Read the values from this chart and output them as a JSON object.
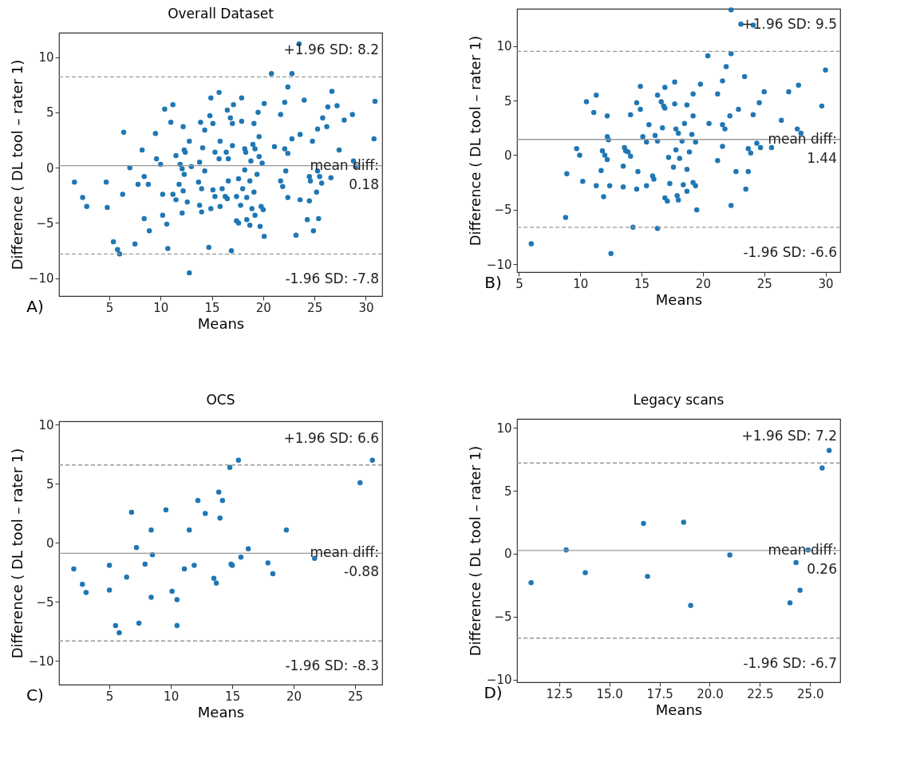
{
  "chart_data": [
    {
      "type": "scatter",
      "title": "Overall Dataset",
      "xlabel": "Means",
      "ylabel": "Difference ( DL tool – rater 1)",
      "annotations": [
        "A)"
      ],
      "color": "#1f77b4",
      "marker": "circle",
      "x": [
        1.6,
        2.4,
        2.8,
        4.7,
        4.8,
        5.4,
        5.8,
        6.0,
        6.3,
        6.4,
        7.0,
        7.5,
        7.8,
        8.2,
        8.4,
        8.4,
        8.8,
        8.9,
        9.5,
        9.6,
        10.0,
        10.2,
        10.2,
        10.4,
        10.6,
        10.7,
        11.0,
        11.2,
        11.2,
        11.5,
        11.5,
        11.8,
        11.9,
        12.1,
        12.2,
        12.2,
        12.1,
        12.3,
        12.3,
        12.4,
        12.6,
        12.8,
        12.8,
        13.0,
        13.7,
        13.8,
        13.9,
        13.8,
        14.0,
        14.0,
        14.1,
        14.3,
        14.3,
        14.8,
        14.7,
        14.9,
        14.9,
        15.1,
        15.1,
        15.3,
        15.3,
        15.7,
        15.7,
        15.8,
        15.8,
        16.0,
        16.3,
        16.4,
        16.5,
        16.5,
        16.6,
        16.6,
        16.8,
        16.9,
        17.0,
        17.0,
        17.1,
        17.4,
        17.4,
        17.6,
        17.6,
        17.8,
        17.9,
        17.9,
        18.0,
        18.2,
        18.2,
        18.3,
        18.4,
        18.4,
        18.7,
        18.7,
        18.8,
        19.0,
        19.1,
        19.1,
        18.9,
        19.2,
        19.2,
        19.4,
        19.5,
        19.6,
        19.6,
        19.7,
        19.8,
        19.9,
        20.0,
        20.1,
        20.1,
        20.8,
        21.1,
        21.7,
        21.7,
        21.9,
        22.1,
        22.1,
        22.2,
        22.4,
        22.4,
        22.4,
        22.8,
        22.8,
        23.2,
        23.5,
        23.6,
        23.6,
        24.0,
        24.3,
        24.5,
        24.6,
        24.5,
        24.8,
        24.9,
        25.2,
        25.3,
        25.3,
        25.4,
        25.5,
        25.7,
        25.8,
        26.2,
        26.3,
        26.6,
        26.7,
        27.2,
        27.4,
        27.9,
        28.7,
        28.8,
        29.0,
        30.8,
        30.9
      ],
      "values": [
        -1.3,
        -2.7,
        -3.5,
        -1.3,
        -3.6,
        -6.7,
        -7.4,
        -7.8,
        -2.4,
        3.2,
        0.0,
        -6.9,
        -1.5,
        1.6,
        -0.8,
        -4.6,
        -1.5,
        -5.7,
        3.1,
        0.8,
        0.3,
        -2.4,
        -4.3,
        5.3,
        -5.1,
        -7.3,
        4.1,
        5.7,
        -2.4,
        1.1,
        -2.9,
        -1.5,
        0.3,
        -0.1,
        3.7,
        -2.1,
        -4.1,
        1.6,
        -0.6,
        1.4,
        -3.1,
        -9.5,
        2.4,
        0.1,
        -1.3,
        -3.4,
        4.1,
        0.5,
        -1.9,
        -4.0,
        1.8,
        3.4,
        -0.3,
        4.7,
        -7.2,
        6.3,
        -3.7,
        4.0,
        -2.0,
        -2.6,
        1.4,
        6.8,
        0.8,
        2.4,
        -3.5,
        -1.9,
        -2.6,
        1.4,
        5.2,
        -2.8,
        0.8,
        -1.2,
        4.5,
        -7.5,
        4.0,
        2.0,
        5.7,
        -2.6,
        -4.8,
        -1.0,
        -5.0,
        -3.4,
        6.3,
        4.2,
        -1.9,
        1.7,
        -0.2,
        1.4,
        -2.7,
        -4.7,
        -1.2,
        -5.2,
        0.6,
        2.1,
        4.0,
        -2.2,
        -3.7,
        1.7,
        -4.3,
        -0.6,
        5.0,
        1.0,
        2.8,
        -5.3,
        -3.5,
        0.4,
        -3.8,
        5.8,
        -6.2,
        8.5,
        1.9,
        4.8,
        -1.2,
        -1.7,
        5.9,
        1.7,
        -0.3,
        1.3,
        7.3,
        -2.7,
        8.5,
        2.6,
        -6.1,
        11.2,
        3.0,
        -2.9,
        6.1,
        -4.7,
        -0.8,
        -1.2,
        -3.0,
        2.4,
        -5.7,
        -2.2,
        -0.3,
        3.5,
        -4.6,
        -0.8,
        -1.4,
        4.5,
        3.7,
        5.5,
        -0.9,
        6.9,
        5.6,
        1.6,
        4.3,
        4.8,
        0.6,
        0.1,
        2.6,
        6.0
      ],
      "xlim": [
        0.1,
        31.6
      ],
      "ylim": [
        -11.6,
        12.2
      ],
      "xticks": [
        5,
        10,
        15,
        20,
        25,
        30
      ],
      "yticks": [
        -10,
        -5,
        0,
        5,
        10
      ],
      "ref_lines": [
        {
          "axis": "y",
          "value": 8.2,
          "label": "+1.96 SD: 8.2",
          "color": "#999999",
          "line_style": "dashed"
        },
        {
          "axis": "y",
          "value": 0.18,
          "label": "mean diff:\n0.18",
          "color": "#999999",
          "line_style": "solid"
        },
        {
          "axis": "y",
          "value": -7.8,
          "label": "-1.96 SD: -7.8",
          "color": "#999999",
          "line_style": "dashed"
        }
      ]
    },
    {
      "type": "scatter",
      "xlabel": "Means",
      "ylabel": "Difference ( DL tool – rater 1)",
      "annotations": [
        "B)"
      ],
      "color": "#1f77b4",
      "marker": "circle",
      "x": [
        6.0,
        8.8,
        8.9,
        9.7,
        9.95,
        10.2,
        10.5,
        11.1,
        11.3,
        11.3,
        11.7,
        11.8,
        11.9,
        12.0,
        12.2,
        12.2,
        12.2,
        12.3,
        12.4,
        12.5,
        13.5,
        13.5,
        13.6,
        13.7,
        13.9,
        14.1,
        14.1,
        14.3,
        14.6,
        14.6,
        14.7,
        14.9,
        14.9,
        15.1,
        15.4,
        15.4,
        15.6,
        15.9,
        16.0,
        16.1,
        16.3,
        16.3,
        16.3,
        16.6,
        16.7,
        16.8,
        16.9,
        16.9,
        16.9,
        17.1,
        17.2,
        17.3,
        17.6,
        17.7,
        17.7,
        17.8,
        17.8,
        17.9,
        18.0,
        18.0,
        18.1,
        18.3,
        18.4,
        18.5,
        18.7,
        18.7,
        18.7,
        18.9,
        19.1,
        19.2,
        19.2,
        19.2,
        19.4,
        19.4,
        19.5,
        19.8,
        20.4,
        20.5,
        21.2,
        21.2,
        21.6,
        21.6,
        21.6,
        21.8,
        21.9,
        22.2,
        22.3,
        22.3,
        22.3,
        22.7,
        22.9,
        23.1,
        23.4,
        23.5,
        23.7,
        23.7,
        23.9,
        24.1,
        24.1,
        24.4,
        24.6,
        24.7,
        25.0,
        25.6,
        26.4,
        27.0,
        27.7,
        27.8,
        28.0,
        29.7,
        30.0
      ],
      "values": [
        -8.1,
        -5.7,
        -1.7,
        0.6,
        0.0,
        -2.4,
        4.9,
        3.9,
        5.5,
        -2.8,
        -1.4,
        0.4,
        -3.8,
        0.0,
        -0.4,
        3.6,
        1.7,
        1.4,
        -2.8,
        -9.0,
        -1.0,
        -2.9,
        0.7,
        0.4,
        0.3,
        -0.1,
        3.7,
        -6.6,
        4.8,
        -3.1,
        -1.5,
        6.3,
        4.2,
        1.7,
        -2.8,
        1.2,
        2.8,
        -1.9,
        -2.2,
        1.8,
        5.5,
        -6.7,
        1.3,
        4.9,
        2.5,
        4.5,
        4.3,
        6.2,
        -3.9,
        -4.2,
        -0.2,
        -2.6,
        -1.1,
        6.7,
        4.7,
        0.5,
        2.4,
        -3.7,
        2.0,
        -4.1,
        -0.3,
        1.3,
        -2.7,
        2.9,
        -1.3,
        -3.3,
        4.6,
        0.3,
        1.9,
        -2.5,
        3.6,
        5.6,
        -2.8,
        1.2,
        -5.0,
        6.5,
        9.1,
        2.9,
        5.6,
        -0.5,
        6.8,
        0.8,
        2.8,
        2.4,
        8.1,
        3.6,
        -4.6,
        9.3,
        13.3,
        -1.5,
        4.2,
        12.0,
        7.2,
        -3.1,
        0.6,
        -1.5,
        0.2,
        11.9,
        3.7,
        1.1,
        4.8,
        0.7,
        5.8,
        0.7,
        3.2,
        5.8,
        2.4,
        6.4,
        2.0,
        4.5,
        7.8
      ],
      "xlim": [
        4.84,
        31.2
      ],
      "ylim": [
        -10.7,
        13.4
      ],
      "xticks": [
        5,
        10,
        15,
        20,
        25,
        30
      ],
      "yticks": [
        -10,
        -5,
        0,
        5,
        10
      ],
      "ref_lines": [
        {
          "axis": "y",
          "value": 9.5,
          "label": "+1.96 SD: 9.5",
          "color": "#999999",
          "line_style": "dashed"
        },
        {
          "axis": "y",
          "value": 1.44,
          "label": "mean diff:\n1.44",
          "color": "#999999",
          "line_style": "solid"
        },
        {
          "axis": "y",
          "value": -6.6,
          "label": "-1.96 SD: -6.6",
          "color": "#999999",
          "line_style": "dashed"
        }
      ]
    },
    {
      "type": "scatter",
      "title": "OCS",
      "xlabel": "Means",
      "ylabel": "Difference ( DL tool – rater 1)",
      "annotations": [
        "C)"
      ],
      "color": "#1f77b4",
      "marker": "circle",
      "x": [
        2.1,
        2.8,
        3.1,
        5.0,
        5.0,
        5.5,
        5.8,
        6.4,
        6.8,
        7.2,
        7.4,
        7.9,
        8.4,
        8.4,
        8.5,
        9.6,
        10.1,
        10.5,
        10.5,
        11.1,
        11.5,
        11.9,
        12.2,
        12.8,
        13.5,
        13.7,
        13.9,
        14.2,
        14.0,
        14.8,
        14.9,
        15.0,
        15.5,
        15.7,
        16.3,
        17.9,
        18.3,
        19.4,
        21.7,
        25.4,
        26.4
      ],
      "values": [
        -2.2,
        -3.5,
        -4.2,
        -1.9,
        -4.0,
        -7.0,
        -7.6,
        -2.9,
        2.6,
        -0.4,
        -6.8,
        -1.8,
        -4.6,
        1.1,
        -1.0,
        2.8,
        -4.1,
        -4.8,
        -7.0,
        -2.2,
        1.1,
        -1.9,
        3.6,
        2.5,
        -3.0,
        -3.4,
        4.3,
        3.6,
        2.1,
        6.4,
        -1.8,
        -1.9,
        7.0,
        -1.2,
        -0.5,
        -1.7,
        -2.6,
        1.1,
        -1.3,
        5.1,
        7.0
      ],
      "xlim": [
        0.9,
        27.2
      ],
      "ylim": [
        -12.0,
        10.3
      ],
      "xticks": [
        5,
        10,
        15,
        20,
        25
      ],
      "yticks": [
        -10,
        -5,
        0,
        5,
        10
      ],
      "ref_lines": [
        {
          "axis": "y",
          "value": 6.6,
          "label": "+1.96 SD: 6.6",
          "color": "#999999",
          "line_style": "dashed"
        },
        {
          "axis": "y",
          "value": -0.88,
          "label": "mean diff:\n-0.88",
          "color": "#999999",
          "line_style": "solid"
        },
        {
          "axis": "y",
          "value": -8.3,
          "label": "-1.96 SD: -8.3",
          "color": "#999999",
          "line_style": "dashed"
        }
      ]
    },
    {
      "type": "scatter",
      "title": "Legacy scans",
      "xlabel": "Means",
      "ylabel": "Difference ( DL tool – rater 1)",
      "annotations": [
        "D)"
      ],
      "color": "#1f77b4",
      "marker": "circle",
      "x": [
        11.1,
        12.85,
        13.8,
        16.7,
        16.9,
        18.7,
        19.05,
        21.0,
        24.0,
        24.3,
        24.5,
        24.9,
        25.6,
        25.95
      ],
      "values": [
        -2.3,
        0.3,
        -1.5,
        2.4,
        -1.8,
        2.5,
        -4.1,
        -0.1,
        -3.9,
        -0.7,
        -2.9,
        0.3,
        6.8,
        8.2
      ],
      "xlim": [
        10.4,
        26.5
      ],
      "ylim": [
        -10.2,
        10.7
      ],
      "xticks": [
        12.5,
        {
          "value": 15,
          "label": "15.0"
        },
        17.5,
        {
          "value": 20,
          "label": "20.0"
        },
        22.5,
        {
          "value": 25,
          "label": "25.0"
        }
      ],
      "yticks": [
        -10,
        -5,
        0,
        5,
        10
      ],
      "ref_lines": [
        {
          "axis": "y",
          "value": 7.2,
          "label": "+1.96 SD: 7.2",
          "color": "#999999",
          "line_style": "dashed"
        },
        {
          "axis": "y",
          "value": 0.26,
          "label": "mean diff:\n0.26",
          "color": "#999999",
          "line_style": "solid"
        },
        {
          "axis": "y",
          "value": -6.7,
          "label": "-1.96 SD: -6.7",
          "color": "#999999",
          "line_style": "dashed"
        }
      ]
    }
  ]
}
